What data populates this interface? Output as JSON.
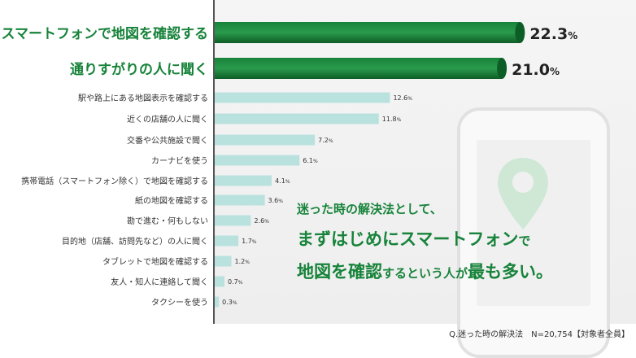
{
  "chart_data": {
    "type": "bar",
    "orientation": "horizontal",
    "unit": "%",
    "categories": [
      "スマートフォンで地図を確認する",
      "通りすがりの人に聞く",
      "駅や路上にある地図表示を確認する",
      "近くの店舗の人に聞く",
      "交番や公共施設で聞く",
      "カーナビを使う",
      "携帯電話（スマートフォン除く）で地図を確認する",
      "紙の地図を確認する",
      "勘で進む・何もしない",
      "目的地（店舗、訪問先など）の人に聞く",
      "タブレットで地図を確認する",
      "友人・知人に連絡して聞く",
      "タクシーを使う"
    ],
    "values": [
      22.3,
      21.0,
      12.6,
      11.8,
      7.2,
      6.1,
      4.1,
      3.6,
      2.6,
      1.7,
      1.2,
      0.7,
      0.3
    ],
    "highlight_count": 2,
    "colors": {
      "highlight": "#17833a",
      "highlight_dark": "#0d5e26",
      "normal": "#b9e2df",
      "accent_text": "#17833a"
    }
  },
  "message": {
    "line1": "迷った時の解決法として、",
    "line2_a": "まずはじめに",
    "line2_b": "スマートフォン",
    "line2_c": "で",
    "line3_a": "地図を確認",
    "line3_b": "するという人が",
    "line3_c": "最も多い。"
  },
  "footnote": "Q.迷った時の解決法　N=20,754【対象者全員】",
  "icons": [
    "smartphone-icon",
    "map-pin-icon"
  ]
}
